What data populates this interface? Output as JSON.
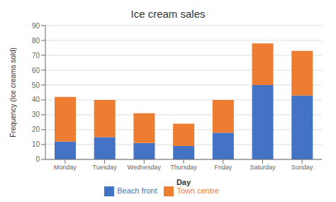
{
  "chart_data": {
    "type": "bar",
    "title": "Ice cream sales",
    "xlabel": "Day",
    "ylabel": "Frequency (Ice creams sold)",
    "categories": [
      "Monday",
      "Tuesday",
      "Wednesday",
      "Thursday",
      "Friday",
      "Saturday",
      "Sunday"
    ],
    "series": [
      {
        "name": "Beach front",
        "color": "#4472c4",
        "values": [
          12,
          15,
          11,
          9,
          18,
          50,
          43
        ]
      },
      {
        "name": "Town centre",
        "color": "#ed7d31",
        "values": [
          30,
          25,
          20,
          15,
          22,
          28,
          30
        ]
      }
    ],
    "stacked": true,
    "ylim": [
      0,
      90
    ],
    "yticks": [
      0,
      10,
      20,
      30,
      40,
      50,
      60,
      70,
      80,
      90
    ],
    "grid": true,
    "legend": "bottom"
  }
}
